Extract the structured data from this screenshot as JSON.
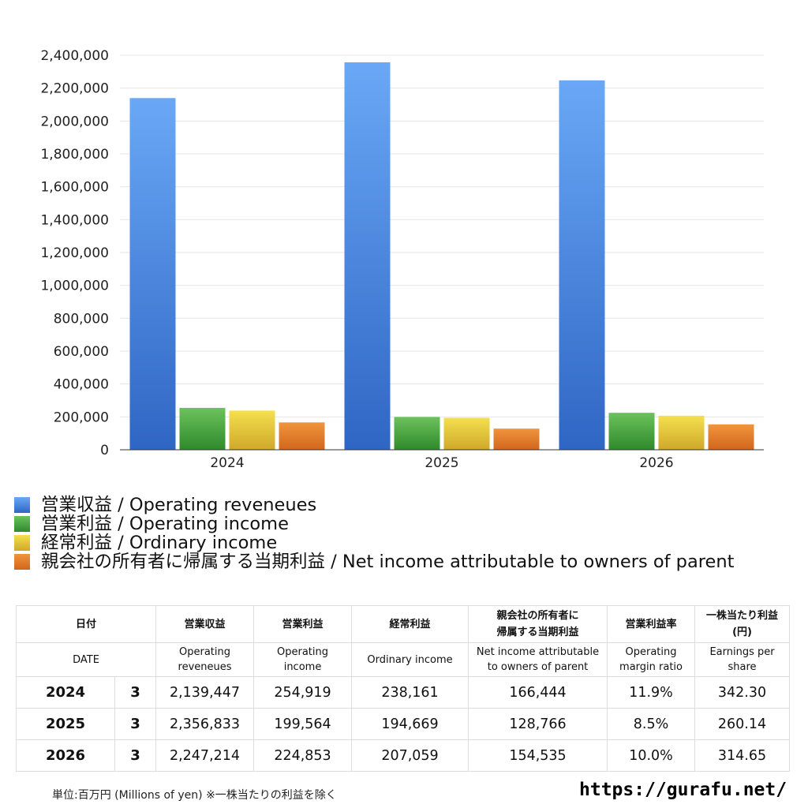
{
  "chart_data": {
    "type": "bar",
    "categories": [
      "2024",
      "2025",
      "2026"
    ],
    "ylim": [
      0,
      2400000
    ],
    "yticks": [
      "0",
      "200,000",
      "400,000",
      "600,000",
      "800,000",
      "1,000,000",
      "1,200,000",
      "1,400,000",
      "1,600,000",
      "1,800,000",
      "2,000,000",
      "2,200,000",
      "2,400,000"
    ],
    "grid": true,
    "legend_position": "bottom",
    "series": [
      {
        "name": "営業収益 / Operating reveneues",
        "color": "#4f8fe8",
        "values": [
          2139447,
          2356833,
          2247214
        ]
      },
      {
        "name": "営業利益 / Operating income",
        "color": "#4caa43",
        "values": [
          254919,
          199564,
          224853
        ]
      },
      {
        "name": "経常利益 / Ordinary income",
        "color": "#e8c935",
        "values": [
          238161,
          194669,
          207059
        ]
      },
      {
        "name": "親会社の所有者に帰属する当期利益 / Net income attributable to owners of parent",
        "color": "#e3802e",
        "values": [
          166444,
          128766,
          154535
        ]
      }
    ]
  },
  "table": {
    "header_jp": [
      "日付",
      "営業収益",
      "営業利益",
      "経常利益",
      "親会社の所有者に\n帰属する当期利益",
      "営業利益率",
      "一株当たり利益\n(円)"
    ],
    "header_en": [
      "DATE",
      "Operating\nreveneues",
      "Operating\nincome",
      "Ordinary income",
      "Net income attributable\nto owners of parent",
      "Operating\nmargin ratio",
      "Earnings per\nshare"
    ],
    "rows": [
      [
        "2024",
        "3",
        "2,139,447",
        "254,919",
        "238,161",
        "166,444",
        "11.9%",
        "342.30"
      ],
      [
        "2025",
        "3",
        "2,356,833",
        "199,564",
        "194,669",
        "128,766",
        "8.5%",
        "260.14"
      ],
      [
        "2026",
        "3",
        "2,247,214",
        "224,853",
        "207,059",
        "154,535",
        "10.0%",
        "314.65"
      ]
    ]
  },
  "footnote": "単位:百万円 (Millions of yen) ※一株当たりの利益を除く",
  "site": "https://gurafu.net/"
}
